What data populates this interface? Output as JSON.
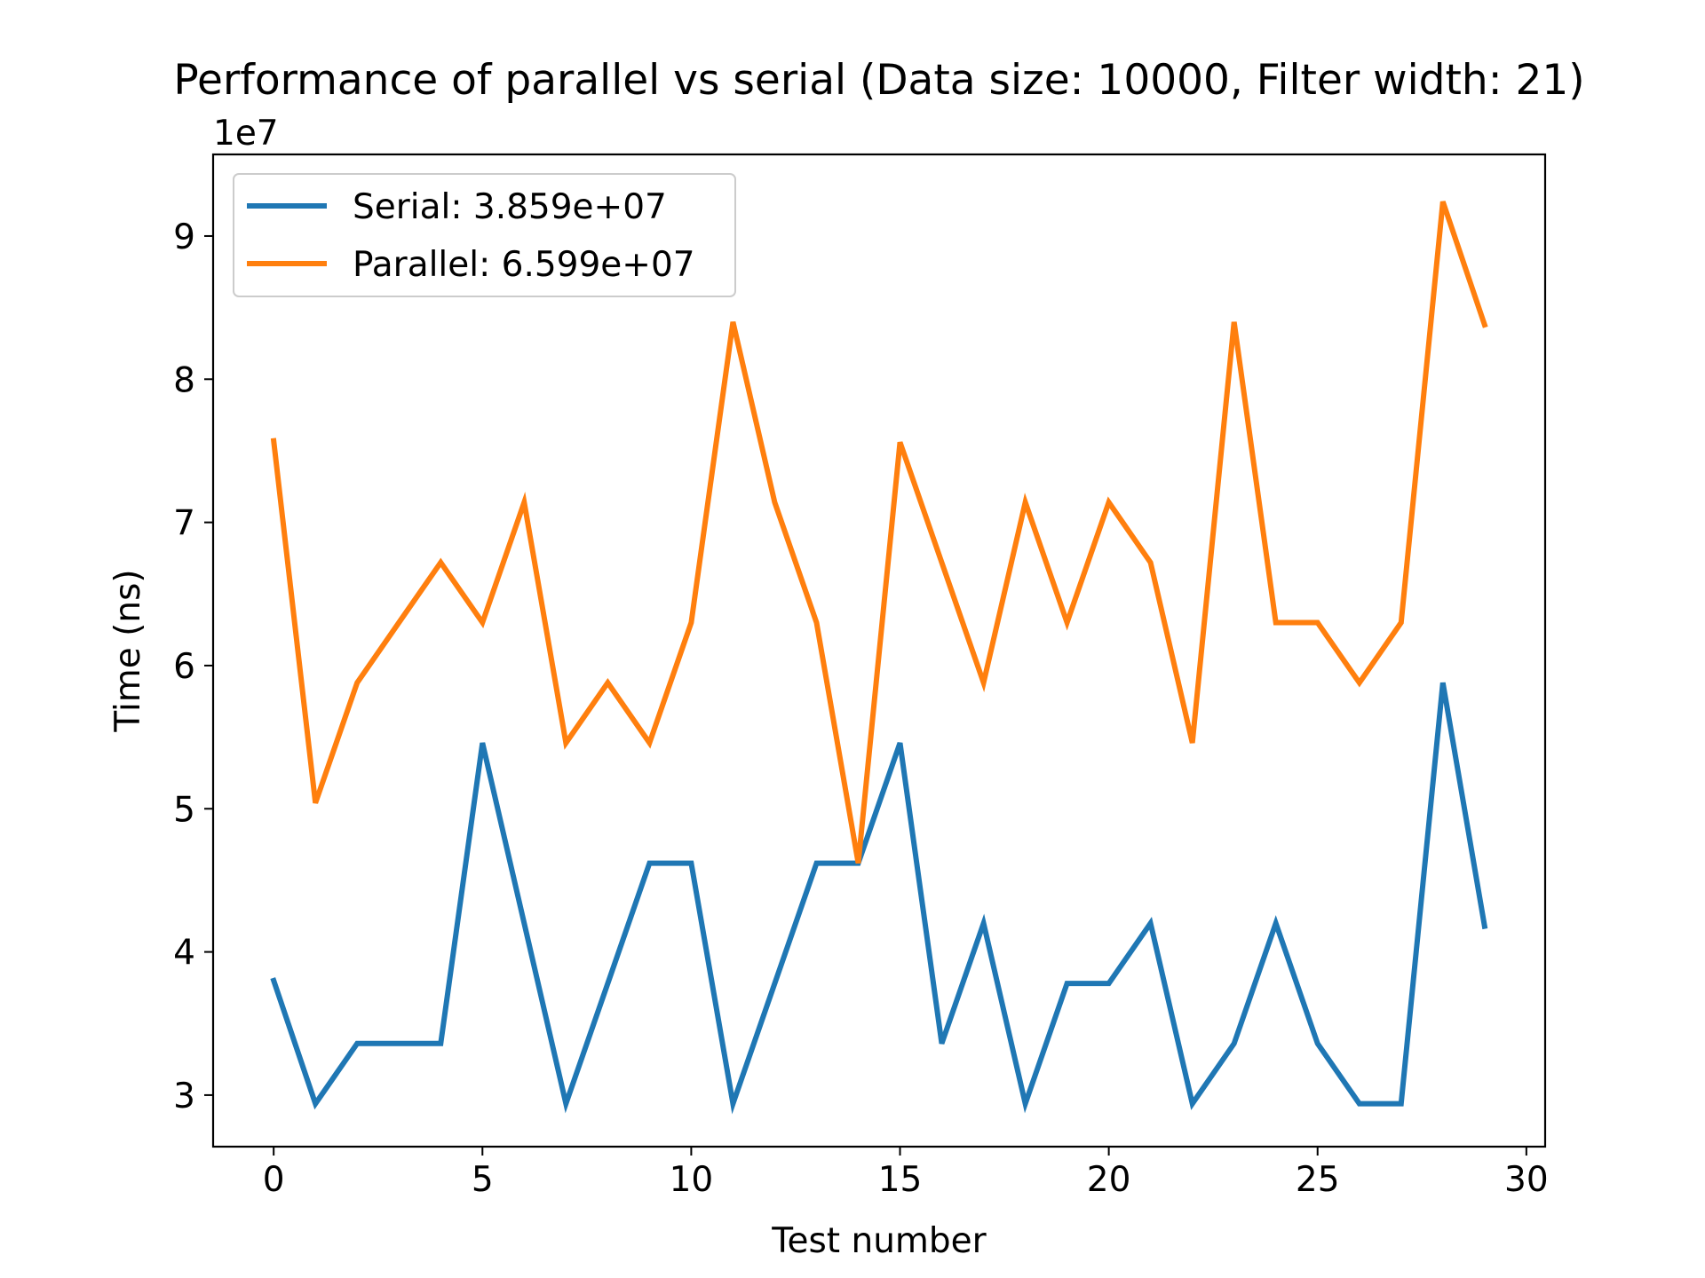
{
  "chart_data": {
    "type": "line",
    "title": "Performance of parallel vs serial (Data size: 10000, Filter width: 21)",
    "xlabel": "Test number",
    "ylabel": "Time (ns)",
    "y_offset_label": "1e7",
    "xlim": [
      -1.45,
      30.45
    ],
    "ylim": [
      2.64,
      9.57
    ],
    "xticks": [
      0,
      5,
      10,
      15,
      20,
      25,
      30
    ],
    "xtick_labels": [
      "0",
      "5",
      "10",
      "15",
      "20",
      "25",
      "30"
    ],
    "yticks": [
      3,
      4,
      5,
      6,
      7,
      8,
      9
    ],
    "ytick_labels": [
      "3",
      "4",
      "5",
      "6",
      "7",
      "8",
      "9"
    ],
    "grid": false,
    "legend_position": "upper-left",
    "x": [
      0,
      1,
      2,
      3,
      4,
      5,
      6,
      7,
      8,
      9,
      10,
      11,
      12,
      13,
      14,
      15,
      16,
      17,
      18,
      19,
      20,
      21,
      22,
      23,
      24,
      25,
      26,
      27,
      28,
      29
    ],
    "series": [
      {
        "name": "Serial: 3.859e+07",
        "color": "#1f77b4",
        "values": [
          3.8,
          2.94,
          3.36,
          3.36,
          3.36,
          5.46,
          4.2,
          2.94,
          3.78,
          4.62,
          4.62,
          2.94,
          3.78,
          4.62,
          4.62,
          5.46,
          3.36,
          4.2,
          2.94,
          3.78,
          3.78,
          4.2,
          2.94,
          3.36,
          4.2,
          3.36,
          2.94,
          2.94,
          5.88,
          4.18
        ]
      },
      {
        "name": "Parallel: 6.599e+07",
        "color": "#ff7f0e",
        "values": [
          7.57,
          5.04,
          5.88,
          6.3,
          6.72,
          6.3,
          7.14,
          5.46,
          5.88,
          5.46,
          6.3,
          8.4,
          7.14,
          6.3,
          4.62,
          7.56,
          6.72,
          5.88,
          7.14,
          6.3,
          7.14,
          6.72,
          5.46,
          8.4,
          6.3,
          6.3,
          5.88,
          6.3,
          9.24,
          8.38
        ]
      }
    ]
  }
}
